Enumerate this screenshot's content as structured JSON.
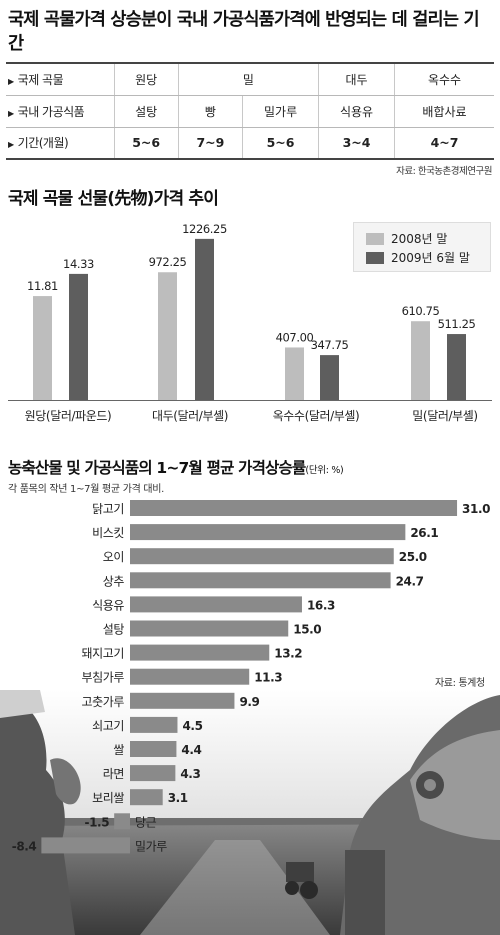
{
  "headline": "국제 곡물가격 상승분이 국내 가공식품가격에 반영되는 데 걸리는 기간",
  "lag_table": {
    "rows": [
      {
        "label": "국제 곡물",
        "cells": [
          {
            "text": "원당",
            "span": 1
          },
          {
            "text": "밀",
            "span": 2
          },
          {
            "text": "대두",
            "span": 1
          },
          {
            "text": "옥수수",
            "span": 1
          }
        ]
      },
      {
        "label": "국내 가공식품",
        "cells": [
          {
            "text": "설탕",
            "span": 1
          },
          {
            "text": "빵",
            "span": 1
          },
          {
            "text": "밀가루",
            "span": 1
          },
          {
            "text": "식용유",
            "span": 1
          },
          {
            "text": "배합사료",
            "span": 1
          }
        ]
      },
      {
        "label": "기간(개월)",
        "cells": [
          {
            "text": "5~6",
            "span": 1
          },
          {
            "text": "7~9",
            "span": 1
          },
          {
            "text": "5~6",
            "span": 1
          },
          {
            "text": "3~4",
            "span": 1
          },
          {
            "text": "4~7",
            "span": 1
          }
        ]
      }
    ],
    "source": "자료: 한국농촌경제연구원"
  },
  "futures_title": "국제 곡물 선물(先物)가격 추이",
  "legend": {
    "a": {
      "label": "2008년 말",
      "color": "#bdbdbd"
    },
    "b": {
      "label": "2009년 6월 말",
      "color": "#5e5e5e"
    }
  },
  "increase_title": "농축산물 및 가공식품의 1~7월 평균 가격상승률",
  "increase_unit": "(단위: %)",
  "increase_subtitle": "각 품목의 작년 1~7월 평균 가격 대비.",
  "increase_source": "자료: 통계청",
  "chart_data": [
    {
      "type": "bar",
      "title": "국제 곡물 선물(先物)가격 추이",
      "categories": [
        "원당(달러/파운드)",
        "대두(달러/부셸)",
        "옥수수(달러/부셸)",
        "밀(달러/부셸)"
      ],
      "series": [
        {
          "name": "2008년 말",
          "values": [
            11.81,
            972.25,
            407.0,
            610.75
          ]
        },
        {
          "name": "2009년 6월 말",
          "values": [
            14.33,
            1226.25,
            347.75,
            511.25
          ]
        }
      ],
      "value_labels": [
        [
          "11.81",
          "972.25",
          "407.00",
          "610.75"
        ],
        [
          "14.33",
          "1226.25",
          "347.75",
          "511.25"
        ]
      ],
      "legend_position": "top-right"
    },
    {
      "type": "bar",
      "orientation": "horizontal",
      "title": "농축산물 및 가공식품의 1~7월 평균 가격상승률",
      "unit": "%",
      "categories": [
        "닭고기",
        "비스킷",
        "오이",
        "상추",
        "식용유",
        "설탕",
        "돼지고기",
        "부침가루",
        "고춧가루",
        "쇠고기",
        "쌀",
        "라면",
        "보리쌀",
        "당근",
        "밀가루"
      ],
      "values": [
        31.0,
        26.1,
        25.0,
        24.7,
        16.3,
        15.0,
        13.2,
        11.3,
        9.9,
        4.5,
        4.4,
        4.3,
        3.1,
        -1.5,
        -8.4
      ],
      "value_labels": [
        "31.0",
        "26.1",
        "25.0",
        "24.7",
        "16.3",
        "15.0",
        "13.2",
        "11.3",
        "9.9",
        "4.5",
        "4.4",
        "4.3",
        "3.1",
        "-1.5",
        "-8.4"
      ],
      "bar_color": "#8a8a8a"
    }
  ]
}
